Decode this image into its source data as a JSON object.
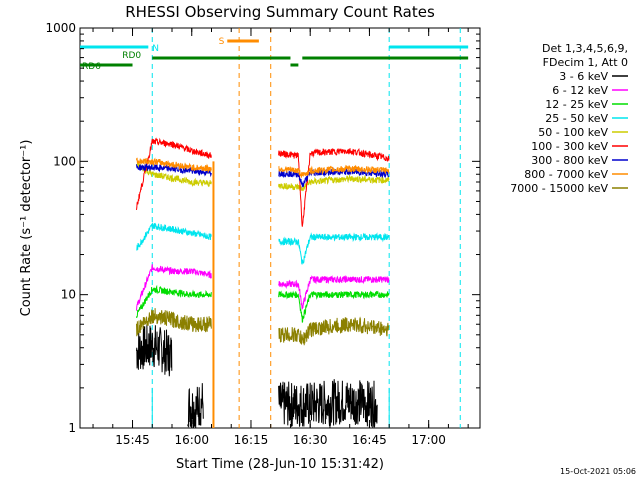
{
  "chart_data": {
    "type": "line",
    "title": "RHESSI Observing Summary Count Rates",
    "xlabel": "Start Time (28-Jun-10 15:31:42)",
    "ylabel": "Count Rate (s⁻¹ detector⁻¹)",
    "yscale": "log",
    "ylim": [
      1,
      1000
    ],
    "xlim": [
      "15:31:42",
      "17:13:00"
    ],
    "x_ticks": [
      "15:45",
      "16:00",
      "16:15",
      "16:30",
      "16:45",
      "17:00"
    ],
    "y_ticks": [
      "1",
      "10",
      "100",
      "1000"
    ],
    "legend_header": [
      "Det 1,3,4,5,6,9,",
      "FDecim 1, Att 0"
    ],
    "legend_position": "right",
    "series": [
      {
        "name": "3 - 6 keV",
        "color": "#000000",
        "segments": [
          {
            "x": [
              "15:46",
              "15:50",
              "15:55"
            ],
            "y": [
              3.8,
              4.2,
              3.5
            ]
          },
          {
            "x": [
              "15:59",
              "16:01",
              "16:03"
            ],
            "y": [
              1.5,
              1.4,
              1.6
            ]
          },
          {
            "x": [
              "16:22",
              "16:30",
              "16:40",
              "16:47"
            ],
            "y": [
              1.5,
              1.5,
              1.6,
              1.5
            ]
          }
        ]
      },
      {
        "name": "6 - 12 keV",
        "color": "#ff00ff",
        "segments": [
          {
            "x": [
              "15:46",
              "15:50",
              "15:55",
              "16:00",
              "16:05"
            ],
            "y": [
              8,
              16,
              15,
              15,
              14
            ]
          },
          {
            "x": [
              "16:22",
              "16:27",
              "16:28",
              "16:30",
              "16:40",
              "16:50"
            ],
            "y": [
              12,
              12,
              8,
              13,
              13,
              13
            ]
          }
        ]
      },
      {
        "name": "12 - 25 keV",
        "color": "#00dd00",
        "segments": [
          {
            "x": [
              "15:46",
              "15:50",
              "15:55",
              "16:00",
              "16:05"
            ],
            "y": [
              7,
              11,
              10.5,
              10,
              10
            ]
          },
          {
            "x": [
              "16:22",
              "16:27",
              "16:28",
              "16:30",
              "16:40",
              "16:50"
            ],
            "y": [
              10,
              10,
              6.5,
              10,
              10,
              10
            ]
          }
        ]
      },
      {
        "name": "25 - 50 keV",
        "color": "#00e5ee",
        "segments": [
          {
            "x": [
              "15:46",
              "15:50",
              "15:55",
              "16:00",
              "16:05"
            ],
            "y": [
              22,
              33,
              31,
              29,
              27
            ]
          },
          {
            "x": [
              "16:22",
              "16:27",
              "16:28",
              "16:30",
              "16:40",
              "16:50"
            ],
            "y": [
              25,
              25,
              17,
              27,
              27,
              27
            ]
          }
        ]
      },
      {
        "name": "50 - 100 keV",
        "color": "#cccc00",
        "segments": [
          {
            "x": [
              "15:46",
              "15:50",
              "15:55",
              "16:00",
              "16:05"
            ],
            "y": [
              95,
              80,
              75,
              70,
              68
            ]
          },
          {
            "x": [
              "16:22",
              "16:27",
              "16:28",
              "16:30",
              "16:40",
              "16:50"
            ],
            "y": [
              66,
              64,
              62,
              70,
              74,
              72
            ]
          }
        ]
      },
      {
        "name": "100 - 300 keV",
        "color": "#ff0000",
        "segments": [
          {
            "x": [
              "15:46",
              "15:50",
              "15:55",
              "16:00",
              "16:05"
            ],
            "y": [
              45,
              140,
              135,
              120,
              110
            ]
          },
          {
            "x": [
              "16:22",
              "16:27",
              "16:28",
              "16:30",
              "16:40",
              "16:50"
            ],
            "y": [
              115,
              110,
              32,
              115,
              120,
              105
            ]
          }
        ]
      },
      {
        "name": "300 - 800 keV",
        "color": "#0000cc",
        "segments": [
          {
            "x": [
              "15:46",
              "15:50",
              "15:55",
              "16:00",
              "16:05"
            ],
            "y": [
              90,
              90,
              88,
              85,
              82
            ]
          },
          {
            "x": [
              "16:22",
              "16:27",
              "16:28",
              "16:30",
              "16:40",
              "16:50"
            ],
            "y": [
              82,
              80,
              66,
              82,
              84,
              80
            ]
          }
        ]
      },
      {
        "name": "800 - 7000 keV",
        "color": "#ff8c00",
        "segments": [
          {
            "x": [
              "15:46",
              "15:50",
              "15:55",
              "16:00",
              "16:05"
            ],
            "y": [
              100,
              100,
              95,
              90,
              88
            ]
          },
          {
            "x": [
              "16:22",
              "16:27",
              "16:28",
              "16:30",
              "16:40",
              "16:50"
            ],
            "y": [
              88,
              85,
              78,
              85,
              88,
              85
            ]
          }
        ]
      },
      {
        "name": "7000 - 15000 keV",
        "color": "#8b8000",
        "segments": [
          {
            "x": [
              "15:46",
              "15:50",
              "15:55",
              "16:00",
              "16:05"
            ],
            "y": [
              5.5,
              7.0,
              6.5,
              6.0,
              6.0
            ]
          },
          {
            "x": [
              "16:22",
              "16:27",
              "16:28",
              "16:30",
              "16:40",
              "16:50"
            ],
            "y": [
              5.0,
              5.0,
              4.5,
              5.5,
              6.0,
              5.5
            ]
          }
        ]
      }
    ],
    "orange_spike_x": "16:05:30",
    "vertical_lines_cyan": [
      "15:50",
      "16:50",
      "17:08"
    ],
    "vertical_line_orange_dashed": [
      "16:12",
      "16:20"
    ],
    "flag_bars": [
      {
        "label": "N",
        "color": "#00e5ee",
        "x": [
          "15:31:42",
          "15:49"
        ]
      },
      {
        "label": "",
        "color": "#00e5ee",
        "x": [
          "16:50",
          "17:10"
        ]
      },
      {
        "label": "S",
        "color": "#ff8c00",
        "x": [
          "16:09",
          "16:17"
        ]
      },
      {
        "label": "RD0",
        "color": "#008000",
        "x": [
          "15:50",
          "16:25"
        ]
      },
      {
        "label": "",
        "color": "#008000",
        "x": [
          "16:25",
          "16:27"
        ]
      },
      {
        "label": "",
        "color": "#008000",
        "x": [
          "16:28",
          "17:10"
        ]
      },
      {
        "label": "RD6",
        "color": "#008000",
        "x": [
          "15:31:42",
          "15:45"
        ]
      }
    ],
    "grid": false
  },
  "footer_timestamp": "15-Oct-2021 05:06"
}
